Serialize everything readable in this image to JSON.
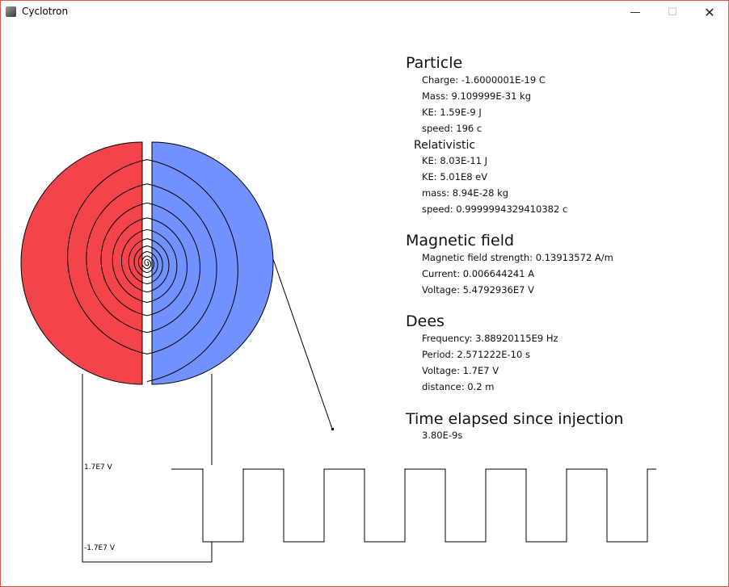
{
  "window": {
    "title": "Cyclotron",
    "minimize_icon": "minimize-icon",
    "maximize_icon": "maximize-icon",
    "close_icon": "close-icon"
  },
  "colors": {
    "dee_left": "#f4444b",
    "dee_right": "#7192fe"
  },
  "particle": {
    "heading": "Particle",
    "charge": "Charge: -1.6000001E-19 C",
    "mass": "Mass: 9.109999E-31 kg",
    "ke": "KE: 1.59E-9 J",
    "speed": "speed: 196 c"
  },
  "relativistic": {
    "heading": "Relativistic",
    "ke_j": "KE: 8.03E-11 J",
    "ke_ev": "KE: 5.01E8 eV",
    "mass": "mass: 8.94E-28 kg",
    "speed": "speed: 0.9999994329410382 c"
  },
  "magnetic_field": {
    "heading": "Magnetic field",
    "strength": "Magnetic field strength: 0.13913572 A/m",
    "current": "Current: 0.006644241 A",
    "voltage": "Voltage: 5.4792936E7 V"
  },
  "dees": {
    "heading": "Dees",
    "frequency": "Frequency: 3.88920115E9 Hz",
    "period": "Period: 2.571222E-10 s",
    "voltage": "Voltage: 1.7E7 V",
    "distance": "distance: 0.2 m"
  },
  "time": {
    "heading": "Time elapsed since injection",
    "value": "3.80E-9s"
  },
  "voltage_graph": {
    "top_label": "1.7E7 V",
    "bottom_label": "-1.7E7 V"
  }
}
